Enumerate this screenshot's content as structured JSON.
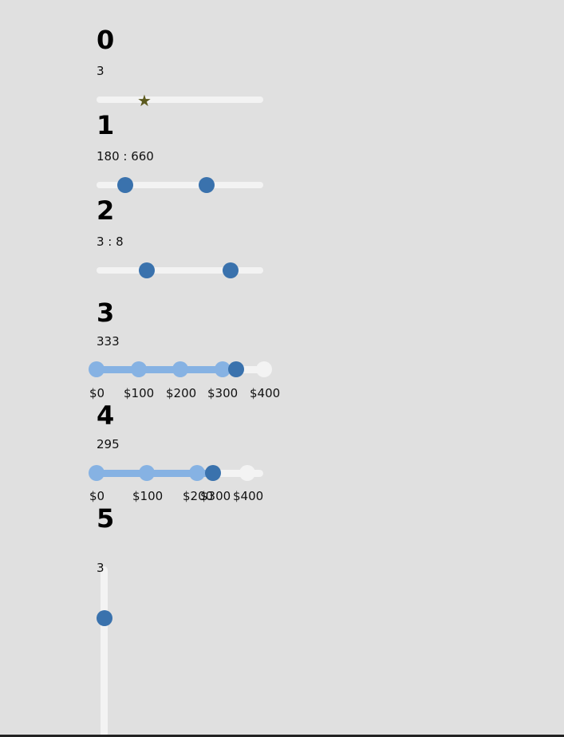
{
  "sliders": [
    {
      "title": "0",
      "value_text": "3",
      "value": 3,
      "thumb_icon": "star-icon"
    },
    {
      "title": "1",
      "value_text": "180 : 660",
      "range": [
        180,
        660
      ]
    },
    {
      "title": "2",
      "value_text": "3 : 8",
      "range": [
        3,
        8
      ]
    },
    {
      "title": "3",
      "value_text": "333",
      "value": 333,
      "tick_labels": [
        "$0",
        "$100",
        "$200",
        "$300",
        "$400"
      ]
    },
    {
      "title": "4",
      "value_text": "295",
      "value": 295,
      "tick_labels": [
        "$0",
        "$100",
        "$200",
        "$300",
        "$400"
      ]
    },
    {
      "title": "5",
      "value_text": "3",
      "value": 3,
      "orientation": "vertical"
    }
  ],
  "colors": {
    "background": "#e0e0e0",
    "track": "#f3f3f3",
    "thumb": "#3a72ad",
    "fill": "#86b2e3",
    "star": "#5c5a1e"
  }
}
